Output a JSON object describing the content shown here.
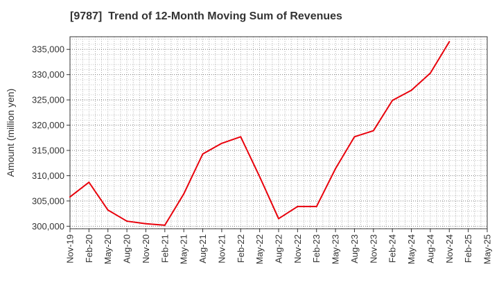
{
  "chart_data": {
    "type": "line",
    "title": "[9787]  Trend of 12-Month Moving Sum of Revenues",
    "ylabel": "Amount (million yen)",
    "xlabel": "",
    "categories": [
      "Nov-19",
      "Feb-20",
      "May-20",
      "Aug-20",
      "Nov-20",
      "Feb-21",
      "May-21",
      "Aug-21",
      "Nov-21",
      "Feb-22",
      "May-22",
      "Aug-22",
      "Nov-22",
      "Feb-23",
      "May-23",
      "Aug-23",
      "Nov-23",
      "Feb-24",
      "May-24",
      "Aug-24",
      "Nov-24",
      "Feb-25",
      "May-25"
    ],
    "yticks": [
      "300,000",
      "305,000",
      "310,000",
      "315,000",
      "320,000",
      "325,000",
      "330,000",
      "335,000"
    ],
    "ytick_values": [
      300000,
      305000,
      310000,
      315000,
      320000,
      325000,
      330000,
      335000
    ],
    "ylim": [
      299500,
      337500
    ],
    "grid": true,
    "series": [
      {
        "color": "#e8000b",
        "values": [
          305800,
          308700,
          303200,
          301000,
          300500,
          300200,
          306400,
          314300,
          316400,
          317700,
          309800,
          301500,
          303900,
          303900,
          311400,
          317700,
          318900,
          324900,
          326900,
          330300,
          336500,
          null,
          null
        ]
      }
    ]
  }
}
